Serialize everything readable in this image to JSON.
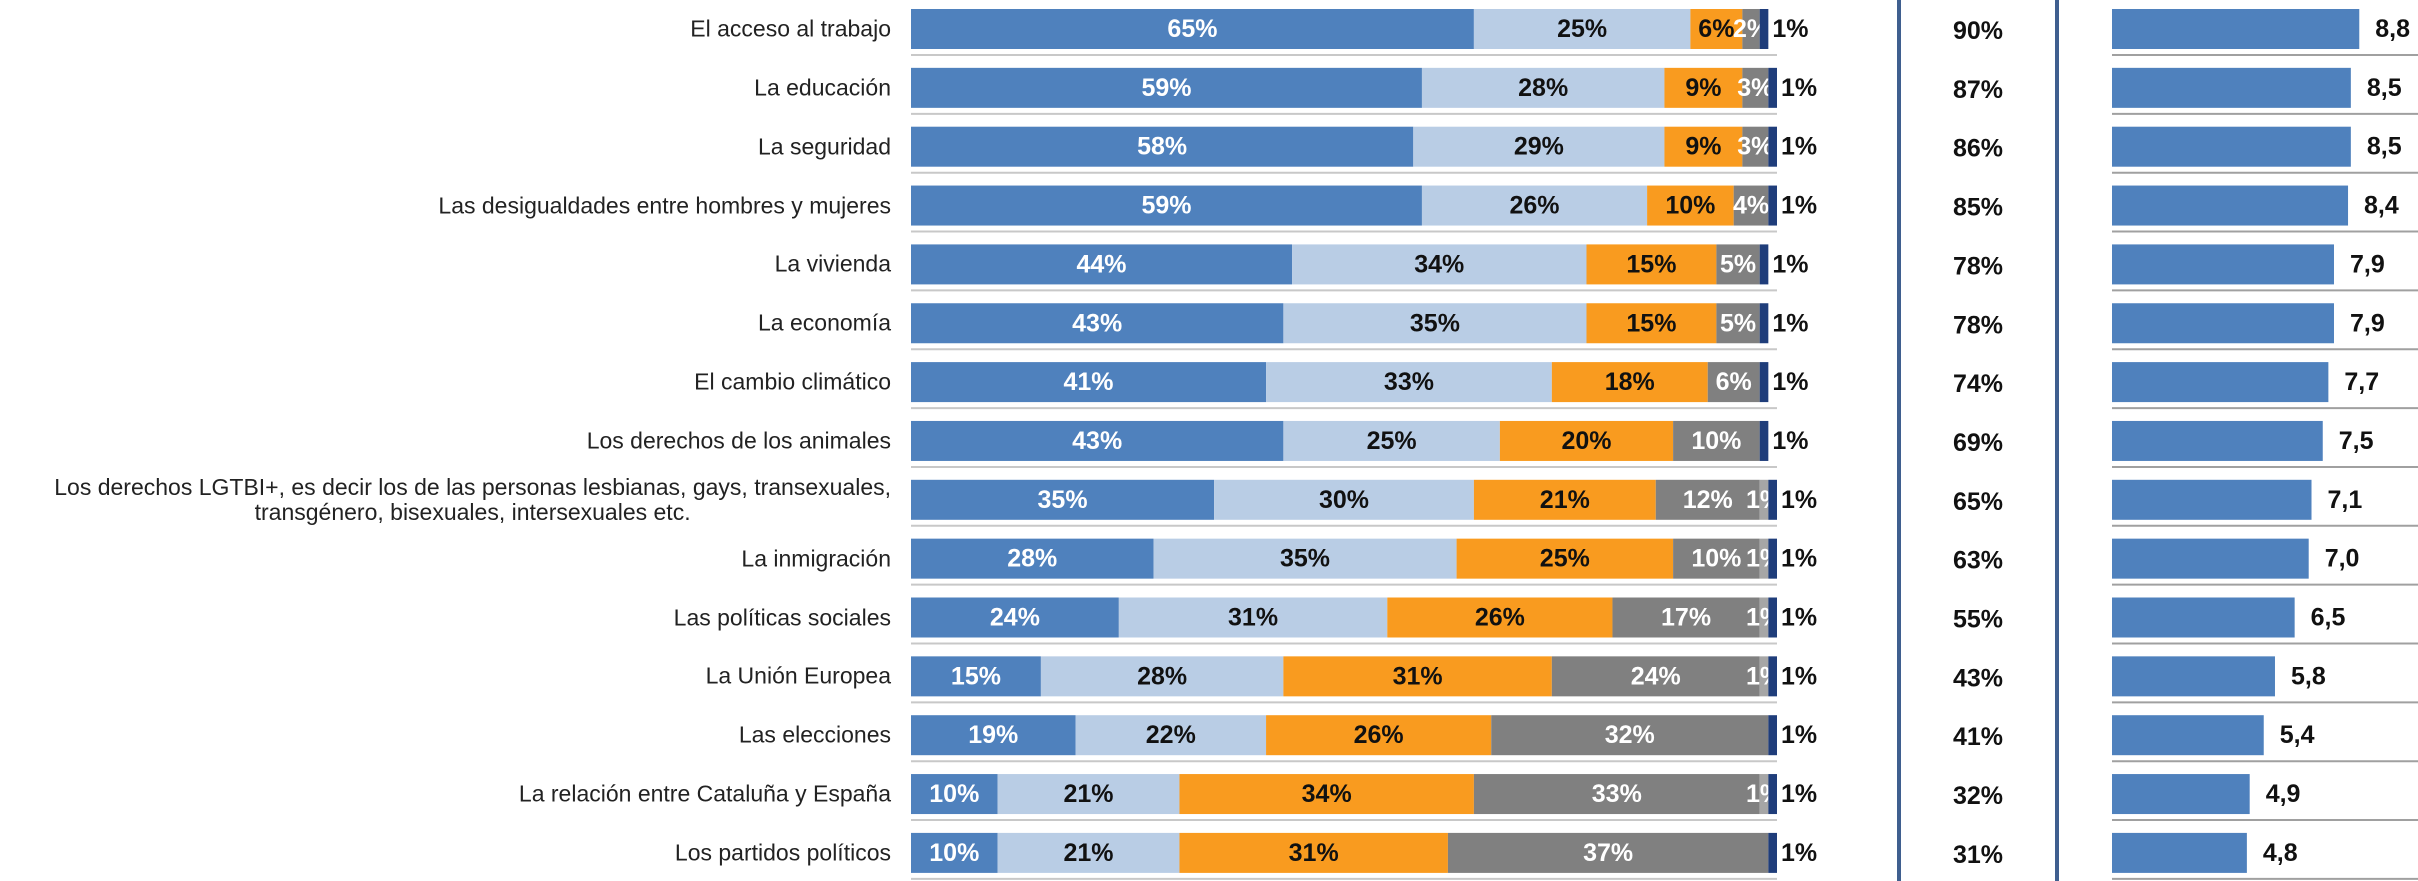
{
  "chart_data": [
    {
      "type": "bar",
      "orientation": "horizontal",
      "stacked": true,
      "categories": [
        "El acceso al trabajo",
        "La educación",
        "La seguridad",
        "Las desigualdades entre hombres y mujeres",
        "La vivienda",
        "La economía",
        "El cambio climático",
        "Los derechos de los animales",
        "Los derechos LGTBI+, es decir los de las personas lesbianas, gays, transexuales,\ntransgénero, bisexuales, intersexuales etc.",
        "La inmigración",
        "Las políticas sociales",
        "La Unión Europea",
        "Las elecciones",
        "La relación entre Cataluña y España",
        "Los partidos políticos"
      ],
      "xlim": [
        0,
        100
      ],
      "series": [
        {
          "color": "#4f81bd",
          "values": [
            65,
            59,
            58,
            59,
            44,
            43,
            41,
            43,
            35,
            28,
            24,
            15,
            19,
            10,
            10
          ],
          "value_labels": [
            "65%",
            "59%",
            "58%",
            "59%",
            "44%",
            "43%",
            "41%",
            "43%",
            "35%",
            "28%",
            "24%",
            "15%",
            "19%",
            "10%",
            "10%"
          ]
        },
        {
          "color": "#b9cde5",
          "values": [
            25,
            28,
            29,
            26,
            34,
            35,
            33,
            25,
            30,
            35,
            31,
            28,
            22,
            21,
            21
          ],
          "value_labels": [
            "25%",
            "28%",
            "29%",
            "26%",
            "34%",
            "35%",
            "33%",
            "25%",
            "30%",
            "35%",
            "31%",
            "28%",
            "22%",
            "21%",
            "21%"
          ]
        },
        {
          "color": "#f99b1f",
          "values": [
            6,
            9,
            9,
            10,
            15,
            15,
            18,
            20,
            21,
            25,
            26,
            31,
            26,
            34,
            31
          ],
          "value_labels": [
            "6%",
            "9%",
            "9%",
            "10%",
            "15%",
            "15%",
            "18%",
            "20%",
            "21%",
            "25%",
            "26%",
            "31%",
            "26%",
            "34%",
            "31%"
          ]
        },
        {
          "color": "#808080",
          "values": [
            2,
            3,
            3,
            4,
            5,
            5,
            6,
            10,
            12,
            10,
            17,
            24,
            32,
            33,
            37
          ],
          "value_labels": [
            "2%",
            "3%",
            "3%",
            "4%",
            "5%",
            "5%",
            "6%",
            "10%",
            "12%",
            "10%",
            "17%",
            "24%",
            "32%",
            "33%",
            "37%"
          ]
        },
        {
          "color": "#a6a6a6",
          "values": [
            null,
            null,
            null,
            null,
            null,
            null,
            null,
            null,
            1,
            1,
            1,
            1,
            null,
            1,
            null
          ],
          "value_labels": [
            null,
            null,
            null,
            null,
            null,
            null,
            null,
            null,
            "1%",
            "1%",
            "1%",
            "1%",
            null,
            "1%",
            null
          ]
        },
        {
          "color": "#1f3d7a",
          "values": [
            1,
            1,
            1,
            1,
            1,
            1,
            1,
            1,
            1,
            1,
            1,
            1,
            1,
            1,
            1
          ],
          "value_labels": [
            "1%",
            "1%",
            "1%",
            "1%",
            "1%",
            "1%",
            "1%",
            "1%",
            "1%",
            "1%",
            "1%",
            "1%",
            "1%",
            "1%",
            "1%"
          ]
        }
      ]
    },
    {
      "type": "labels",
      "values": [
        90,
        87,
        86,
        85,
        78,
        78,
        74,
        69,
        65,
        63,
        55,
        43,
        41,
        32,
        31
      ],
      "value_labels": [
        "90%",
        "87%",
        "86%",
        "85%",
        "78%",
        "78%",
        "74%",
        "69%",
        "65%",
        "63%",
        "55%",
        "43%",
        "41%",
        "32%",
        "31%"
      ]
    },
    {
      "type": "bar",
      "orientation": "horizontal",
      "color": "#4f81bd",
      "xlim": [
        0,
        10
      ],
      "values": [
        8.8,
        8.5,
        8.5,
        8.4,
        7.9,
        7.9,
        7.7,
        7.5,
        7.1,
        7.0,
        6.5,
        5.8,
        5.4,
        4.9,
        4.8
      ],
      "value_labels": [
        "8,8",
        "8,5",
        "8,5",
        "8,4",
        "7,9",
        "7,9",
        "7,7",
        "7,5",
        "7,1",
        "7,0",
        "6,5",
        "5,8",
        "5,4",
        "4,9",
        "4,8"
      ]
    }
  ]
}
